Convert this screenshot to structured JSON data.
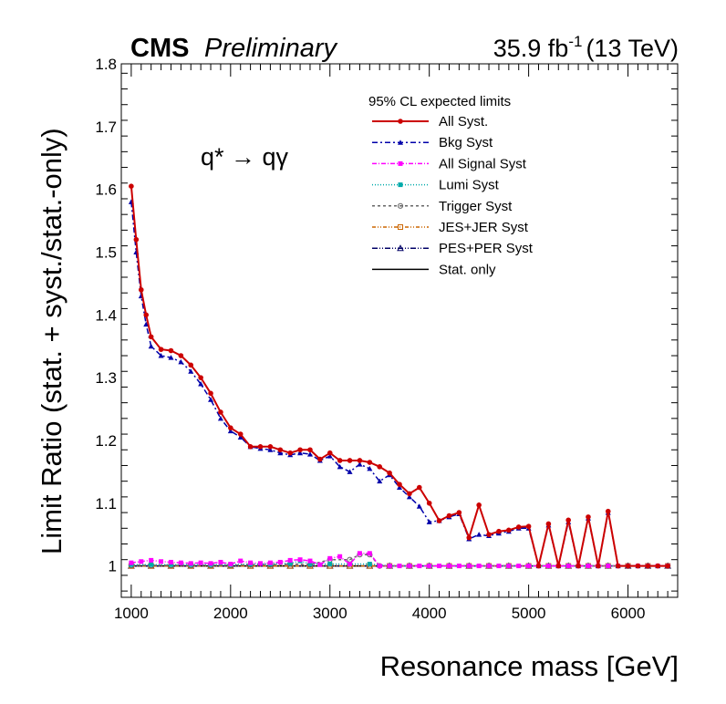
{
  "header": {
    "experiment": "CMS",
    "status": "Preliminary",
    "lumi_prefix": "35.9 fb",
    "lumi_exp": "-1",
    "lumi_suffix": "(13 TeV)"
  },
  "process_label": "q* → qγ",
  "chart_data": {
    "type": "line",
    "xlabel": "Resonance mass [GeV]",
    "ylabel": "Limit Ratio (stat. + syst./stat.-only)",
    "xlim": [
      900,
      6500
    ],
    "ylim": [
      0.95,
      1.8
    ],
    "x_ticks": [
      1000,
      2000,
      3000,
      4000,
      5000,
      6000
    ],
    "y_ticks": [
      1,
      1.1,
      1.2,
      1.3,
      1.4,
      1.5,
      1.6,
      1.7,
      1.8
    ],
    "legend_title": "95% CL expected limits",
    "legend_position": "top-right",
    "series": [
      {
        "name": "All Syst.",
        "color": "#cc0000",
        "dash": "solid",
        "marker": "circle",
        "x": [
          1000,
          1050,
          1100,
          1150,
          1200,
          1300,
          1400,
          1500,
          1600,
          1700,
          1800,
          1900,
          2000,
          2100,
          2200,
          2300,
          2400,
          2500,
          2600,
          2700,
          2800,
          2900,
          3000,
          3100,
          3200,
          3300,
          3400,
          3500,
          3600,
          3700,
          3800,
          3900,
          4000,
          4100,
          4200,
          4300,
          4400,
          4500,
          4600,
          4700,
          4800,
          4900,
          5000,
          5100,
          5200,
          5300,
          5400,
          5500,
          5600,
          5700,
          5800,
          5900,
          6000,
          6100,
          6200,
          6300,
          6400
        ],
        "y": [
          1.605,
          1.52,
          1.44,
          1.4,
          1.365,
          1.345,
          1.343,
          1.335,
          1.32,
          1.3,
          1.275,
          1.245,
          1.22,
          1.21,
          1.19,
          1.19,
          1.19,
          1.185,
          1.18,
          1.185,
          1.185,
          1.17,
          1.18,
          1.168,
          1.168,
          1.168,
          1.165,
          1.158,
          1.148,
          1.13,
          1.115,
          1.125,
          1.1,
          1.072,
          1.08,
          1.085,
          1.045,
          1.097,
          1.05,
          1.055,
          1.057,
          1.062,
          1.063,
          1.0,
          1.067,
          1.0,
          1.073,
          1.0,
          1.078,
          1.0,
          1.087,
          1.0,
          1.0,
          1.0,
          1.0,
          1.0,
          1.0
        ]
      },
      {
        "name": "Bkg Syst",
        "color": "#0000aa",
        "dash": "6,3,2,3",
        "marker": "triangle",
        "x": [
          1000,
          1050,
          1100,
          1150,
          1200,
          1300,
          1400,
          1500,
          1600,
          1700,
          1800,
          1900,
          2000,
          2100,
          2200,
          2300,
          2400,
          2500,
          2600,
          2700,
          2800,
          2900,
          3000,
          3100,
          3200,
          3300,
          3400,
          3500,
          3600,
          3700,
          3800,
          3900,
          4000,
          4100,
          4200,
          4300,
          4400,
          4500,
          4600,
          4700,
          4800,
          4900,
          5000,
          5100,
          5200,
          5300,
          5400,
          5500,
          5600,
          5700,
          5800,
          5900,
          6000,
          6100,
          6200,
          6300,
          6400
        ],
        "y": [
          1.58,
          1.5,
          1.43,
          1.385,
          1.35,
          1.335,
          1.332,
          1.325,
          1.31,
          1.29,
          1.265,
          1.235,
          1.215,
          1.205,
          1.19,
          1.187,
          1.185,
          1.18,
          1.177,
          1.18,
          1.178,
          1.168,
          1.175,
          1.158,
          1.15,
          1.162,
          1.155,
          1.135,
          1.145,
          1.125,
          1.11,
          1.095,
          1.07,
          1.072,
          1.078,
          1.083,
          1.043,
          1.05,
          1.048,
          1.052,
          1.055,
          1.06,
          1.06,
          1.0,
          1.065,
          1.0,
          1.07,
          1.0,
          1.076,
          1.0,
          1.085,
          1.0,
          1.0,
          1.0,
          1.0,
          1.0,
          1.0
        ]
      },
      {
        "name": "All Signal Syst",
        "color": "#ff00ff",
        "dash": "5,2,1,2",
        "marker": "square",
        "x": [
          1000,
          1100,
          1200,
          1300,
          1400,
          1500,
          1600,
          1700,
          1800,
          1900,
          2000,
          2100,
          2200,
          2300,
          2400,
          2500,
          2600,
          2700,
          2800,
          2900,
          3000,
          3100,
          3200,
          3300,
          3400,
          3500,
          3600,
          3700,
          3800,
          3900,
          4000,
          4100,
          4200,
          4300,
          4400,
          4500,
          4600,
          4700,
          4800,
          4900,
          5000,
          5100,
          5200,
          5300,
          5400,
          5500,
          5600,
          5700,
          5800,
          5900,
          6000,
          6100,
          6200,
          6300,
          6400
        ],
        "y": [
          1.005,
          1.007,
          1.009,
          1.007,
          1.006,
          1.005,
          1.004,
          1.005,
          1.004,
          1.006,
          1.003,
          1.008,
          1.005,
          1.004,
          1.005,
          1.006,
          1.009,
          1.01,
          1.008,
          1.002,
          1.012,
          1.015,
          1.003,
          1.02,
          1.02,
          1.0,
          1.0,
          1.0,
          1.0,
          1.0,
          1.0,
          1.0,
          1.0,
          1.0,
          1.0,
          1.0,
          1.0,
          1.0,
          1.0,
          1.0,
          1.0,
          1.0,
          1.0,
          1.0,
          1.0,
          1.0,
          1.0,
          1.0,
          1.0,
          1.0,
          1.0,
          1.0,
          1.0,
          1.0,
          1.0
        ]
      },
      {
        "name": "Lumi Syst",
        "color": "#00aaaa",
        "dash": "1,2",
        "marker": "square",
        "x": [
          1000,
          1200,
          1400,
          1600,
          1800,
          2000,
          2200,
          2400,
          2600,
          2700,
          2800,
          3000,
          3200,
          3400,
          3600,
          3800,
          4000,
          4200,
          4400,
          4600,
          4800,
          5000,
          5200,
          5400,
          5600,
          5800,
          6000,
          6200,
          6400
        ],
        "y": [
          1.002,
          1.002,
          1.002,
          1.002,
          1.002,
          1.002,
          1.003,
          1.003,
          1.004,
          1.008,
          1.003,
          1.003,
          1.003,
          1.003,
          1.0,
          1.0,
          1.0,
          1.0,
          1.0,
          1.0,
          1.0,
          1.0,
          1.0,
          1.0,
          1.0,
          1.0,
          1.0,
          1.0,
          1.0
        ]
      },
      {
        "name": "Trigger Syst",
        "color": "#666666",
        "dash": "3,3",
        "marker": "circle-open",
        "x": [
          1000,
          1200,
          1400,
          1600,
          1800,
          2000,
          2200,
          2400,
          2600,
          2800,
          3000,
          3200,
          3300,
          3400,
          3500,
          3600,
          3800,
          4000,
          4200,
          4400,
          4600,
          4800,
          5000,
          5200,
          5400,
          5600,
          5800,
          6000,
          6200,
          6400
        ],
        "y": [
          1.001,
          1.001,
          1.001,
          1.001,
          1.001,
          1.001,
          1.002,
          1.002,
          1.003,
          1.002,
          1.01,
          1.01,
          1.018,
          1.018,
          1.0,
          1.0,
          1.0,
          1.0,
          1.0,
          1.0,
          1.0,
          1.0,
          1.0,
          1.0,
          1.0,
          1.0,
          1.0,
          1.0,
          1.0,
          1.0
        ]
      },
      {
        "name": "JES+JER Syst",
        "color": "#cc6600",
        "dash": "4,2,1,2,1,2",
        "marker": "square-open",
        "x": [
          1000,
          1200,
          1400,
          1600,
          1800,
          2000,
          2200,
          2400,
          2600,
          2800,
          3000,
          3200,
          3400,
          3600,
          3800,
          4000,
          4200,
          4400,
          4600,
          4800,
          5000,
          5200,
          5400,
          5600,
          5800,
          6000,
          6200,
          6400
        ],
        "y": [
          1.0,
          1.0,
          1.0,
          1.0,
          1.0,
          1.0,
          1.0,
          1.0,
          1.0,
          1.0,
          1.0,
          1.0,
          1.0,
          1.0,
          1.0,
          1.0,
          1.0,
          1.0,
          1.0,
          1.0,
          1.0,
          1.0,
          1.0,
          1.0,
          1.0,
          1.0,
          1.0,
          1.0
        ]
      },
      {
        "name": "PES+PER Syst",
        "color": "#000066",
        "dash": "6,2,1,2,1,2",
        "marker": "triangle-open",
        "x": [
          1000,
          1200,
          1400,
          1600,
          1800,
          2000,
          2200,
          2400,
          2600,
          2800,
          3000,
          3200,
          3400,
          3600,
          3800,
          4000,
          4200,
          4400,
          4600,
          4800,
          5000,
          5200,
          5400,
          5600,
          5800,
          6000,
          6200,
          6400
        ],
        "y": [
          1.0,
          1.0,
          1.0,
          1.0,
          1.0,
          1.0,
          1.0,
          1.0,
          1.0,
          1.0,
          1.0,
          1.0,
          1.0,
          1.0,
          1.0,
          1.0,
          1.0,
          1.0,
          1.0,
          1.0,
          1.0,
          1.0,
          1.0,
          1.0,
          1.0,
          1.0,
          1.0,
          1.0
        ]
      },
      {
        "name": "Stat. only",
        "color": "#000000",
        "dash": "solid",
        "marker": "none",
        "x": [
          1000,
          6400
        ],
        "y": [
          1.0,
          1.0
        ]
      }
    ]
  }
}
